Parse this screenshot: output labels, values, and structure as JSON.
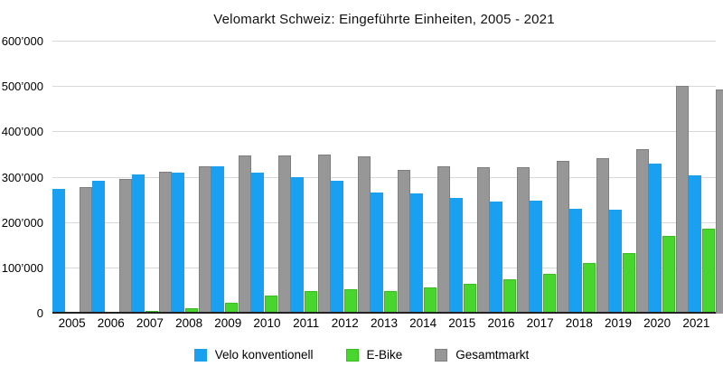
{
  "chart_data": {
    "type": "bar",
    "title": "Velomarkt Schweiz: Eingeführte Einheiten, 2005 - 2021",
    "xlabel": "",
    "ylabel": "",
    "ylim": [
      0,
      600000
    ],
    "ytick_step": 100000,
    "ytick_labels": [
      "0",
      "100’000",
      "200’000",
      "300’000",
      "400’000",
      "500’000",
      "600’000"
    ],
    "grid": true,
    "legend_position": "bottom",
    "categories": [
      "2005",
      "2006",
      "2007",
      "2008",
      "2009",
      "2010",
      "2011",
      "2012",
      "2013",
      "2014",
      "2015",
      "2016",
      "2017",
      "2018",
      "2019",
      "2020",
      "2021"
    ],
    "series": [
      {
        "name": "Velo konventionell",
        "color": "#19A0F1",
        "border": "#19A0F1",
        "values": [
          275000,
          294000,
          307000,
          311000,
          325000,
          310000,
          301000,
          294000,
          267000,
          266000,
          255000,
          248000,
          250000,
          231000,
          229000,
          330000,
          306000
        ]
      },
      {
        "name": "E-Bike",
        "color": "#48D52E",
        "border": "#3CBA23",
        "values": [
          2000,
          3000,
          6000,
          12000,
          24000,
          39000,
          50000,
          53000,
          50000,
          58000,
          66000,
          76000,
          88000,
          112000,
          133000,
          171000,
          187000
        ]
      },
      {
        "name": "Gesamtmarkt",
        "color": "#979797",
        "border": "#7E7E7E",
        "values": [
          279000,
          298000,
          313000,
          324000,
          349000,
          349000,
          351000,
          347000,
          317000,
          324000,
          322000,
          323000,
          337000,
          343000,
          362000,
          503000,
          495000
        ]
      }
    ],
    "axis_color": "#222222",
    "gridline_color": "#d8d8d8"
  }
}
